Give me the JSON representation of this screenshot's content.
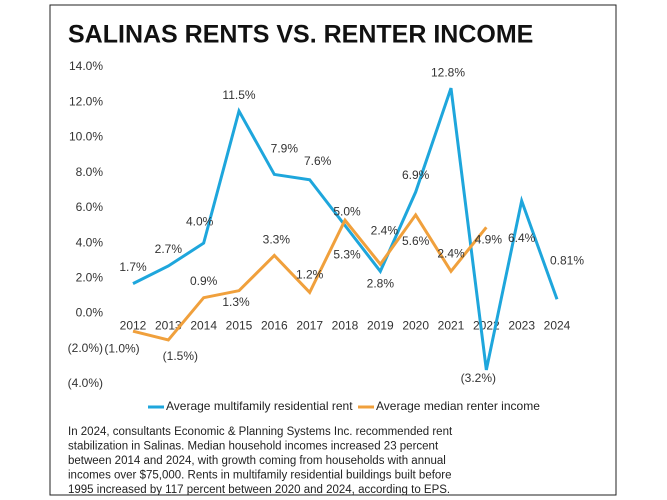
{
  "chart_data": {
    "type": "line",
    "title": "SALINAS RENTS VS. RENTER INCOME",
    "categories": [
      "2012",
      "2013",
      "2014",
      "2015",
      "2016",
      "2017",
      "2018",
      "2019",
      "2020",
      "2021",
      "2022",
      "2023",
      "2024"
    ],
    "series": [
      {
        "name": "Average multifamily residential rent",
        "color": "#1ea6dc",
        "values": [
          1.7,
          2.7,
          4.0,
          11.5,
          7.9,
          7.6,
          5.0,
          2.4,
          6.9,
          12.8,
          -3.2,
          6.4,
          0.81
        ],
        "value_labels": [
          "1.7%",
          "2.7%",
          "4.0%",
          "11.5%",
          "7.9%",
          "7.6%",
          "5.0%",
          "2.4%",
          "6.9%",
          "12.8%",
          "(3.2%)",
          "6.4%",
          "0.81%"
        ]
      },
      {
        "name": "Average median renter income",
        "color": "#f0a03c",
        "values": [
          -1.0,
          -1.5,
          0.9,
          1.3,
          3.3,
          1.2,
          5.3,
          2.8,
          5.6,
          2.4,
          4.9,
          null,
          null
        ],
        "value_labels": [
          "(1.0%)",
          "(1.5%)",
          "0.9%",
          "1.3%",
          "3.3%",
          "1.2%",
          "5.3%",
          "2.8%",
          "5.6%",
          "2.4%",
          "4.9%",
          null,
          null
        ]
      }
    ],
    "ylim": [
      -4,
      14
    ],
    "yticks": [
      {
        "value": 14,
        "label": "14.0%"
      },
      {
        "value": 12,
        "label": "12.0%"
      },
      {
        "value": 10,
        "label": "10.0%"
      },
      {
        "value": 8,
        "label": "8.0%"
      },
      {
        "value": 6,
        "label": "6.0%"
      },
      {
        "value": 4,
        "label": "4.0%"
      },
      {
        "value": 2,
        "label": "2.0%"
      },
      {
        "value": 0,
        "label": "0.0%"
      },
      {
        "value": -2,
        "label": "(2.0%)"
      },
      {
        "value": -4,
        "label": "(4.0%)"
      }
    ],
    "grid": false,
    "legend": "bottom",
    "note": [
      "In 2024, consultants Economic & Planning Systems Inc. recommended rent",
      "stabilization in Salinas. Median household incomes increased 23 percent",
      "between 2014 and 2024, with growth coming from households with annual",
      "incomes over $75,000. Rents in multifamily residential buildings built before",
      "1995 increased by 117 percent between 2020 and 2024, according to EPS."
    ]
  }
}
